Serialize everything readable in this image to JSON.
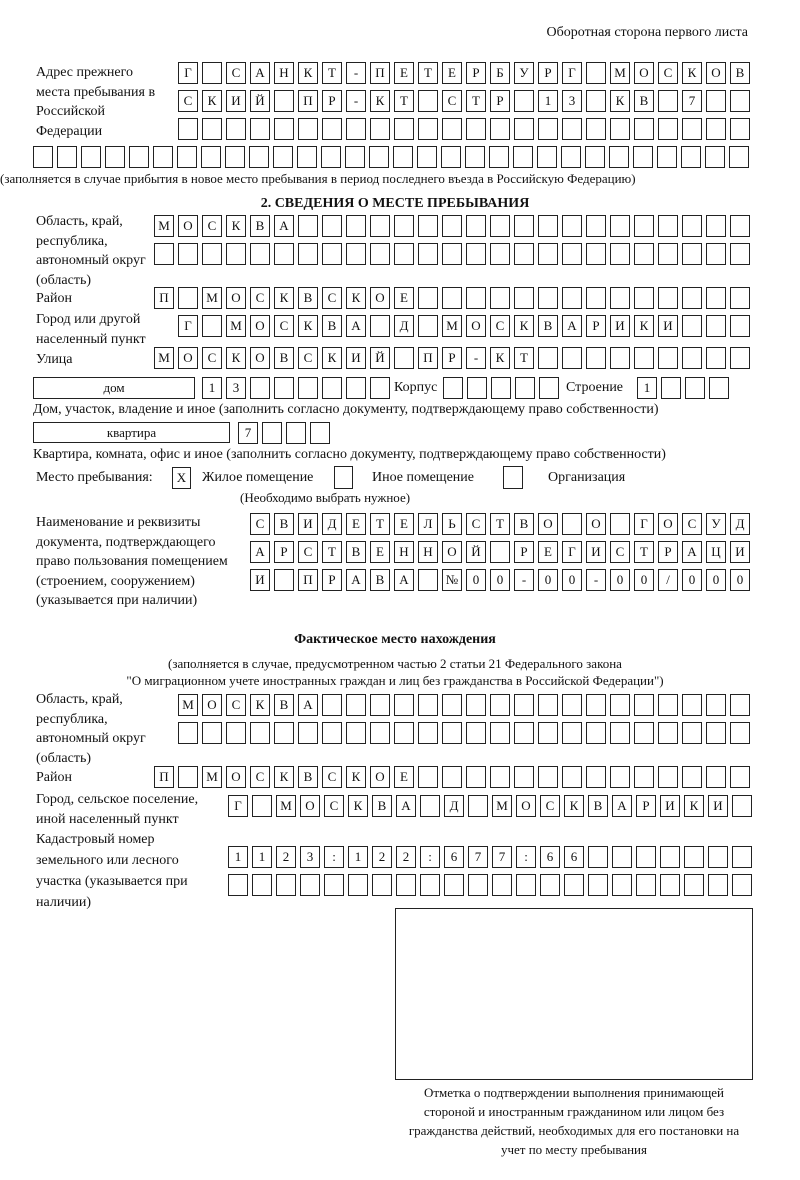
{
  "header": "Оборотная сторона первого листа",
  "prev_address": {
    "label": "Адрес прежнего места пребывания в Российской Федерации",
    "rows": [
      [
        "Г",
        "",
        "С",
        "А",
        "Н",
        "К",
        "Т",
        "-",
        "П",
        "Е",
        "Т",
        "Е",
        "Р",
        "Б",
        "У",
        "Р",
        "Г",
        "",
        "М",
        "О",
        "С",
        "К",
        "О",
        "В"
      ],
      [
        "С",
        "К",
        "И",
        "Й",
        "",
        "П",
        "Р",
        "-",
        "К",
        "Т",
        "",
        "С",
        "Т",
        "Р",
        "",
        "1",
        "3",
        "",
        "К",
        "В",
        "",
        "7",
        "",
        ""
      ],
      [
        "",
        "",
        "",
        "",
        "",
        "",
        "",
        "",
        "",
        "",
        "",
        "",
        "",
        "",
        "",
        "",
        "",
        "",
        "",
        "",
        "",
        "",
        "",
        ""
      ],
      [
        "",
        "",
        "",
        "",
        "",
        "",
        "",
        "",
        "",
        "",
        "",
        "",
        "",
        "",
        "",
        "",
        "",
        "",
        "",
        "",
        "",
        "",
        "",
        "",
        "",
        "",
        "",
        "",
        "",
        ""
      ]
    ],
    "note": "(заполняется в случае прибытия в новое место пребывания в период последнего въезда в Российскую Федерацию)"
  },
  "section2": {
    "title": "2. СВЕДЕНИЯ О МЕСТЕ ПРЕБЫВАНИЯ",
    "region_label": "Область, край, республика, автономный округ (область)",
    "region_rows": [
      [
        "М",
        "О",
        "С",
        "К",
        "В",
        "А",
        "",
        "",
        "",
        "",
        "",
        "",
        "",
        "",
        "",
        "",
        "",
        "",
        "",
        "",
        "",
        "",
        "",
        "",
        ""
      ],
      [
        "",
        "",
        "",
        "",
        "",
        "",
        "",
        "",
        "",
        "",
        "",
        "",
        "",
        "",
        "",
        "",
        "",
        "",
        "",
        "",
        "",
        "",
        "",
        "",
        ""
      ]
    ],
    "district_label": "Район",
    "district": [
      "П",
      "",
      "М",
      "О",
      "С",
      "К",
      "В",
      "С",
      "К",
      "О",
      "Е",
      "",
      "",
      "",
      "",
      "",
      "",
      "",
      "",
      "",
      "",
      "",
      "",
      "",
      ""
    ],
    "city_label": "Город или другой населенный пункт",
    "city": [
      "Г",
      "",
      "М",
      "О",
      "С",
      "К",
      "В",
      "А",
      "",
      "Д",
      "",
      "М",
      "О",
      "С",
      "К",
      "В",
      "А",
      "Р",
      "И",
      "К",
      "И",
      "",
      "",
      ""
    ],
    "street_label": "Улица",
    "street": [
      "М",
      "О",
      "С",
      "К",
      "О",
      "В",
      "С",
      "К",
      "И",
      "Й",
      "",
      "П",
      "Р",
      "-",
      "К",
      "Т",
      "",
      "",
      "",
      "",
      "",
      "",
      "",
      "",
      ""
    ],
    "house_type": "дом",
    "house": [
      "1",
      "3",
      "",
      "",
      "",
      "",
      "",
      ""
    ],
    "korpus_label": "Корпус",
    "korpus": [
      "",
      "",
      "",
      "",
      ""
    ],
    "building_label": "Строение",
    "building": [
      "1",
      "",
      "",
      ""
    ],
    "house_note": "Дом, участок, владение и иное (заполнить согласно документу, подтверждающему право собственности)",
    "apt_type": "квартира",
    "apt": [
      "7",
      "",
      "",
      ""
    ],
    "apt_note": "Квартира, комната, офис и иное (заполнить согласно документу, подтверждающему право собственности)",
    "place_label": "Место пребывания:",
    "place_options": [
      {
        "label": "Жилое помещение",
        "mark": "X"
      },
      {
        "label": "Иное помещение",
        "mark": ""
      },
      {
        "label": "Организация",
        "mark": ""
      }
    ],
    "place_note": "(Необходимо выбрать нужное)",
    "doc_label": "Наименование и реквизиты документа, подтверждающего право пользования помещением (строением, сооружением) (указывается при наличии)",
    "doc_rows": [
      [
        "С",
        "В",
        "И",
        "Д",
        "Е",
        "Т",
        "Е",
        "Л",
        "Ь",
        "С",
        "Т",
        "В",
        "О",
        "",
        "О",
        "",
        "Г",
        "О",
        "С",
        "У",
        "Д"
      ],
      [
        "А",
        "Р",
        "С",
        "Т",
        "В",
        "Е",
        "Н",
        "Н",
        "О",
        "Й",
        "",
        "Р",
        "Е",
        "Г",
        "И",
        "С",
        "Т",
        "Р",
        "А",
        "Ц",
        "И"
      ],
      [
        "И",
        "",
        "П",
        "Р",
        "А",
        "В",
        "А",
        "",
        "№",
        "0",
        "0",
        "-",
        "0",
        "0",
        "-",
        "0",
        "0",
        "/",
        "0",
        "0",
        "0"
      ]
    ]
  },
  "actual": {
    "title": "Фактическое место нахождения",
    "note1": "(заполняется в случае, предусмотренном частью 2 статьи 21 Федерального закона",
    "note2": "\"О миграционном учете иностранных граждан и лиц без гражданства в Российской Федерации\")",
    "region_label": "Область, край, республика, автономный округ (область)",
    "region_rows": [
      [
        "М",
        "О",
        "С",
        "К",
        "В",
        "А",
        "",
        "",
        "",
        "",
        "",
        "",
        "",
        "",
        "",
        "",
        "",
        "",
        "",
        "",
        "",
        "",
        "",
        ""
      ],
      [
        "",
        "",
        "",
        "",
        "",
        "",
        "",
        "",
        "",
        "",
        "",
        "",
        "",
        "",
        "",
        "",
        "",
        "",
        "",
        "",
        "",
        "",
        "",
        ""
      ]
    ],
    "district_label": "Район",
    "district": [
      "П",
      "",
      "М",
      "О",
      "С",
      "К",
      "В",
      "С",
      "К",
      "О",
      "Е",
      "",
      "",
      "",
      "",
      "",
      "",
      "",
      "",
      "",
      "",
      "",
      "",
      "",
      ""
    ],
    "city_label": "Город, сельское поселение, иной населенный пункт",
    "city": [
      "Г",
      "",
      "М",
      "О",
      "С",
      "К",
      "В",
      "А",
      "",
      "Д",
      "",
      "М",
      "О",
      "С",
      "К",
      "В",
      "А",
      "Р",
      "И",
      "К",
      "И",
      ""
    ],
    "cadastre_label": "Кадастровый номер земельного или лесного участка (указывается при наличии)",
    "cadastre_rows": [
      [
        "1",
        "1",
        "2",
        "3",
        ":",
        "1",
        "2",
        "2",
        ":",
        "6",
        "7",
        "7",
        ":",
        "6",
        "6",
        "",
        "",
        "",
        "",
        "",
        "",
        ""
      ],
      [
        "",
        "",
        "",
        "",
        "",
        "",
        "",
        "",
        "",
        "",
        "",
        "",
        "",
        "",
        "",
        "",
        "",
        "",
        "",
        "",
        "",
        ""
      ]
    ]
  },
  "stamp_caption": "Отметка о подтверждении выполнения принимающей стороной и иностранным гражданином или лицом без гражданства действий, необходимых для его постановки на учет по месту пребывания"
}
